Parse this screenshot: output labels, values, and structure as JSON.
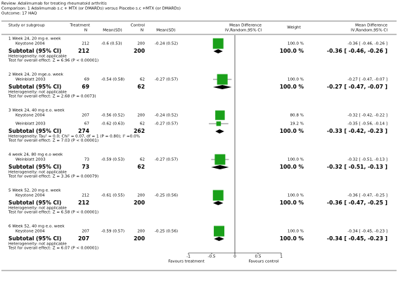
{
  "header": {
    "review": "Review:  Adalimumab for treating rheumatoid arthritis",
    "comparison": "Comparison:  1 Adalimumab s.c + MTX (or DMARDs) versus Placebo s.c +MTX (or DMARDs)",
    "outcome": "Outcome:  17 HAQ"
  },
  "chart_data": {
    "type": "forest",
    "columns": {
      "study": "Study or subgroup",
      "treatment": "Treatment",
      "treatment_n": "N",
      "treatment_mean_sd": "Mean(SD)",
      "control": "Control",
      "control_n": "N",
      "control_mean_sd": "Mean(SD)",
      "plot": "Mean Difference",
      "plot_method": "IV,Random,95% CI",
      "weight": "Weight",
      "estimate": "Mean Difference",
      "estimate_method": "IV,Random,95% CI"
    },
    "groups": [
      {
        "label": "1 Week 24, 20 mg e. week",
        "studies": [
          {
            "name": "Keystone 2004",
            "treatment_n": 212,
            "treatment_mean_sd": "-0.6 (0.53)",
            "control_n": 200,
            "control_mean_sd": "-0.24 (0.52)",
            "weight": 100.0,
            "weight_label": "100.0 %",
            "md": -0.36,
            "ci_low": -0.46,
            "ci_high": -0.26,
            "estimate_label": "-0.36 [ -0.46, -0.26 ]"
          }
        ],
        "subtotal": {
          "label": "Subtotal (95% CI)",
          "treatment_n": 212,
          "control_n": 200,
          "weight": 100.0,
          "weight_label": "100.0 %",
          "md": -0.36,
          "ci_low": -0.46,
          "ci_high": -0.26,
          "estimate_label": "-0.36 [ -0.46, -0.26 ]"
        },
        "heterogeneity": "Heterogeneity: not applicable",
        "overall_effect": "Test for overall effect: Z = 6.96 (P < 0.00001)"
      },
      {
        "label": "2 Week 24, 20 mge.o. week",
        "studies": [
          {
            "name": "Weinblatt 2003",
            "treatment_n": 69,
            "treatment_mean_sd": "-0.54 (0.58)",
            "control_n": 62,
            "control_mean_sd": "-0.27 (0.57)",
            "weight": 100.0,
            "weight_label": "100.0 %",
            "md": -0.27,
            "ci_low": -0.47,
            "ci_high": -0.07,
            "estimate_label": "-0.27 [ -0.47, -0.07 ]"
          }
        ],
        "subtotal": {
          "label": "Subtotal (95% CI)",
          "treatment_n": 69,
          "control_n": 62,
          "weight": 100.0,
          "weight_label": "100.0 %",
          "md": -0.27,
          "ci_low": -0.47,
          "ci_high": -0.07,
          "estimate_label": "-0.27 [ -0.47, -0.07 ]"
        },
        "heterogeneity": "Heterogeneity: not applicable",
        "overall_effect": "Test for overall effect: Z = 2.68 (P = 0.0073)"
      },
      {
        "label": "3 Week 24, 40 mg e.o. week",
        "studies": [
          {
            "name": "Keystone 2004",
            "treatment_n": 207,
            "treatment_mean_sd": "-0.56 (0.52)",
            "control_n": 200,
            "control_mean_sd": "-0.24 (0.52)",
            "weight": 80.8,
            "weight_label": "80.8 %",
            "md": -0.32,
            "ci_low": -0.42,
            "ci_high": -0.22,
            "estimate_label": "-0.32 [ -0.42, -0.22 ]"
          },
          {
            "name": "Weinblatt 2003",
            "treatment_n": 67,
            "treatment_mean_sd": "-0.62 (0.63)",
            "control_n": 62,
            "control_mean_sd": "-0.27 (0.57)",
            "weight": 19.2,
            "weight_label": "19.2 %",
            "md": -0.35,
            "ci_low": -0.56,
            "ci_high": -0.14,
            "estimate_label": "-0.35 [ -0.56, -0.14 ]"
          }
        ],
        "subtotal": {
          "label": "Subtotal (95% CI)",
          "treatment_n": 274,
          "control_n": 262,
          "weight": 100.0,
          "weight_label": "100.0 %",
          "md": -0.33,
          "ci_low": -0.42,
          "ci_high": -0.23,
          "estimate_label": "-0.33 [ -0.42, -0.23 ]"
        },
        "heterogeneity": "Heterogeneity: Tau² = 0.0; Chi² = 0.07, df = 1 (P = 0.80); I² =0.0%",
        "overall_effect": "Test for overall effect: Z = 7.03 (P < 0.00001)"
      },
      {
        "label": "4 week 24, 80 mg e.o week",
        "studies": [
          {
            "name": "Weinblatt 2003",
            "treatment_n": 73,
            "treatment_mean_sd": "-0.59 (0.53)",
            "control_n": 62,
            "control_mean_sd": "-0.27 (0.57)",
            "weight": 100.0,
            "weight_label": "100.0 %",
            "md": -0.32,
            "ci_low": -0.51,
            "ci_high": -0.13,
            "estimate_label": "-0.32 [ -0.51, -0.13 ]"
          }
        ],
        "subtotal": {
          "label": "Subtotal (95% CI)",
          "treatment_n": 73,
          "control_n": 62,
          "weight": 100.0,
          "weight_label": "100.0 %",
          "md": -0.32,
          "ci_low": -0.51,
          "ci_high": -0.13,
          "estimate_label": "-0.32 [ -0.51, -0.13 ]"
        },
        "heterogeneity": "Heterogeneity: not applicable",
        "overall_effect": "Test for overall effect: Z = 3.36 (P = 0.00079)"
      },
      {
        "label": "5 Week 52, 20 mg e. week",
        "studies": [
          {
            "name": "Keystone 2004",
            "treatment_n": 212,
            "treatment_mean_sd": "-0.61 (0.55)",
            "control_n": 200,
            "control_mean_sd": "-0.25 (0.56)",
            "weight": 100.0,
            "weight_label": "100.0 %",
            "md": -0.36,
            "ci_low": -0.47,
            "ci_high": -0.25,
            "estimate_label": "-0.36 [ -0.47, -0.25 ]"
          }
        ],
        "subtotal": {
          "label": "Subtotal (95% CI)",
          "treatment_n": 212,
          "control_n": 200,
          "weight": 100.0,
          "weight_label": "100.0 %",
          "md": -0.36,
          "ci_low": -0.47,
          "ci_high": -0.25,
          "estimate_label": "-0.36 [ -0.47, -0.25 ]"
        },
        "heterogeneity": "Heterogeneity: not applicable",
        "overall_effect": "Test for overall effect: Z = 6.58 (P < 0.00001)"
      },
      {
        "label": "6 Week 52, 40 mg e.o. week",
        "studies": [
          {
            "name": "Keystone 2004",
            "treatment_n": 207,
            "treatment_mean_sd": "-0.59 (0.57)",
            "control_n": 200,
            "control_mean_sd": "-0.25 (0.56)",
            "weight": 100.0,
            "weight_label": "100.0 %",
            "md": -0.34,
            "ci_low": -0.45,
            "ci_high": -0.23,
            "estimate_label": "-0.34 [ -0.45, -0.23 ]"
          }
        ],
        "subtotal": {
          "label": "Subtotal (95% CI)",
          "treatment_n": 207,
          "control_n": 200,
          "weight": 100.0,
          "weight_label": "100.0 %",
          "md": -0.34,
          "ci_low": -0.45,
          "ci_high": -0.23,
          "estimate_label": "-0.34 [ -0.45, -0.23 ]"
        },
        "heterogeneity": "Heterogeneity: not applicable",
        "overall_effect": "Test for overall effect: Z = 6.07 (P < 0.00001)"
      }
    ],
    "xlim": [
      -1,
      1
    ],
    "xticks": [
      -1,
      -0.5,
      0,
      0.5,
      1
    ],
    "x_label_left": "Favours treatment",
    "x_label_right": "Favours control",
    "color": "#1aa01a"
  }
}
